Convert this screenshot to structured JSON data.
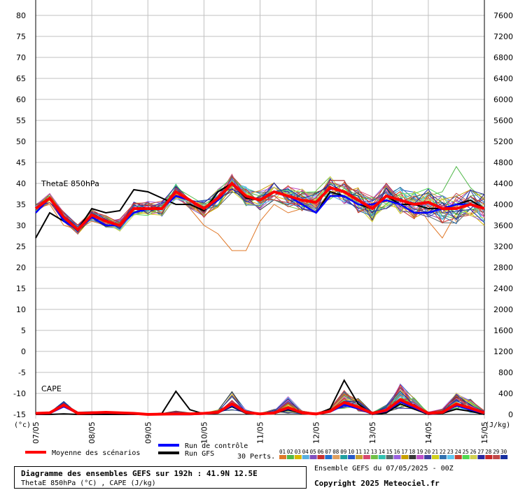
{
  "chart_data": {
    "type": "line",
    "x_labels": [
      "07/05",
      "08/05",
      "09/05",
      "10/05",
      "11/05",
      "12/05",
      "13/05",
      "14/05",
      "15/05"
    ],
    "x_hours": [
      0,
      24,
      48,
      72,
      96,
      120,
      144,
      168,
      192
    ],
    "y_left": {
      "unit": "(°c)",
      "min": -15,
      "max": 80,
      "ticks": [
        80,
        75,
        70,
        65,
        60,
        55,
        50,
        45,
        40,
        35,
        30,
        25,
        20,
        15,
        10,
        5,
        0,
        -5,
        -10,
        -15
      ]
    },
    "y_right": {
      "unit": "(J/kg)",
      "min": 0,
      "max": 7600,
      "ticks": [
        7600,
        7200,
        6800,
        6400,
        6000,
        5600,
        5200,
        4800,
        4400,
        4000,
        3600,
        3200,
        2800,
        2400,
        2000,
        1600,
        1200,
        800,
        400,
        0
      ]
    },
    "grid": true,
    "panel_labels": {
      "thetae": "ThetaE 850hPa",
      "cape": "CAPE"
    },
    "thetae": {
      "hours": [
        0,
        6,
        12,
        18,
        24,
        30,
        36,
        42,
        48,
        54,
        60,
        66,
        72,
        78,
        84,
        90,
        96,
        102,
        108,
        114,
        120,
        126,
        132,
        138,
        144,
        150,
        156,
        162,
        168,
        174,
        180,
        186,
        192
      ],
      "mean": [
        34,
        36.5,
        32,
        29,
        32.5,
        31,
        30,
        34,
        34,
        34,
        38,
        36,
        34,
        36.5,
        40,
        37,
        36,
        38,
        37,
        36,
        35.5,
        39,
        38,
        36,
        34,
        37,
        36,
        35,
        35.5,
        34,
        34,
        35,
        34
      ],
      "control": [
        33,
        36.5,
        31,
        29,
        32,
        30,
        30,
        33,
        34,
        34,
        37,
        36,
        34,
        36,
        40,
        37,
        36,
        38,
        37,
        35,
        33,
        37,
        37,
        35,
        35,
        36,
        35,
        33,
        33,
        34,
        35,
        35,
        34
      ],
      "gfs": [
        27,
        33,
        31,
        29,
        34,
        33,
        33.5,
        38.5,
        38,
        36.5,
        35,
        35,
        33.5,
        38,
        40,
        36.5,
        36,
        38,
        37,
        35,
        33,
        38,
        37,
        35,
        34,
        37,
        35,
        35,
        34,
        34,
        35,
        36,
        34
      ],
      "member_examples": [
        [
          34,
          35,
          30,
          29,
          31,
          30,
          29,
          33,
          33,
          34,
          37,
          34,
          30,
          28,
          24,
          24,
          31,
          35,
          33,
          34,
          33,
          37,
          38,
          35,
          34,
          37,
          36,
          36,
          31,
          27,
          33,
          35,
          33
        ],
        [
          35,
          37,
          31,
          28,
          32,
          31,
          30,
          34,
          35,
          34,
          39,
          37,
          35,
          37,
          41,
          38,
          37,
          39,
          38,
          37,
          36,
          40,
          39,
          37,
          36,
          38,
          37,
          36,
          37,
          38,
          44,
          39,
          36
        ],
        [
          33,
          36,
          32,
          29,
          33,
          30,
          31,
          33,
          33,
          35,
          38,
          35,
          34,
          36,
          40,
          36,
          35,
          37,
          36,
          35,
          34,
          38,
          36,
          36,
          33,
          35,
          34,
          34,
          33,
          33,
          32,
          33,
          30
        ]
      ]
    },
    "cape": {
      "hours": [
        0,
        6,
        12,
        18,
        24,
        30,
        36,
        42,
        48,
        54,
        60,
        66,
        72,
        78,
        84,
        90,
        96,
        102,
        108,
        114,
        120,
        126,
        132,
        138,
        144,
        150,
        156,
        162,
        168,
        174,
        180,
        186,
        192
      ],
      "mean": [
        20,
        30,
        180,
        20,
        30,
        40,
        30,
        20,
        0,
        5,
        10,
        10,
        20,
        40,
        200,
        40,
        10,
        30,
        130,
        30,
        10,
        60,
        230,
        140,
        20,
        80,
        280,
        160,
        20,
        40,
        200,
        120,
        30
      ],
      "control": [
        10,
        20,
        150,
        20,
        20,
        30,
        20,
        10,
        0,
        0,
        0,
        0,
        10,
        30,
        170,
        30,
        10,
        30,
        110,
        30,
        10,
        50,
        180,
        110,
        10,
        60,
        240,
        130,
        10,
        30,
        170,
        90,
        20
      ],
      "gfs": [
        0,
        0,
        10,
        0,
        0,
        0,
        0,
        0,
        0,
        20,
        440,
        90,
        10,
        30,
        150,
        20,
        0,
        20,
        90,
        20,
        0,
        110,
        650,
        200,
        0,
        30,
        200,
        100,
        0,
        20,
        100,
        60,
        0
      ],
      "member_max_examples": [
        10,
        40,
        300,
        80,
        70,
        60,
        50,
        40,
        10,
        30,
        100,
        40,
        30,
        120,
        600,
        120,
        30,
        150,
        500,
        90,
        30,
        180,
        620,
        420,
        50,
        260,
        830,
        420,
        60,
        150,
        560,
        420,
        100
      ]
    }
  },
  "legend": {
    "mean_label": "Moyenne des scénarios",
    "control_label": "Run de contrôle",
    "gfs_label": "Run GFS",
    "perts_label": "30 Perts.",
    "perts_numbers": [
      "01",
      "02",
      "03",
      "04",
      "05",
      "06",
      "07",
      "08",
      "09",
      "10",
      "11",
      "12",
      "13",
      "14",
      "15",
      "16",
      "17",
      "18",
      "19",
      "20",
      "21",
      "22",
      "23",
      "24",
      "25",
      "26",
      "27",
      "28",
      "29",
      "30"
    ],
    "perts_colors": [
      "#e07828",
      "#50b848",
      "#d8b800",
      "#58b0e0",
      "#8050c0",
      "#c83030",
      "#2070d0",
      "#e0a060",
      "#20a0a0",
      "#2858c8",
      "#c8a030",
      "#d84870",
      "#70c048",
      "#30c0b0",
      "#586868",
      "#9a60e0",
      "#c8a000",
      "#383838",
      "#c050c8",
      "#4040a0",
      "#d0d020",
      "#3070b0",
      "#60c8f0",
      "#c84030",
      "#50d850",
      "#d0d050",
      "#2828a0",
      "#c82828",
      "#c04848",
      "#1830a0"
    ]
  },
  "colors": {
    "mean": "#ff0000",
    "control": "#0000ff",
    "gfs": "#000000",
    "grid": "#c0c0c0"
  },
  "footer": {
    "title": "Diagramme des ensembles GEFS sur 192h : 41.9N 12.5E",
    "subtitle": "ThetaE 850hPa (°C) , CAPE (J/kg)",
    "run_info": "Ensemble GEFS du 07/05/2025 - 00Z",
    "copyright": "Copyright 2025 Meteociel.fr"
  }
}
